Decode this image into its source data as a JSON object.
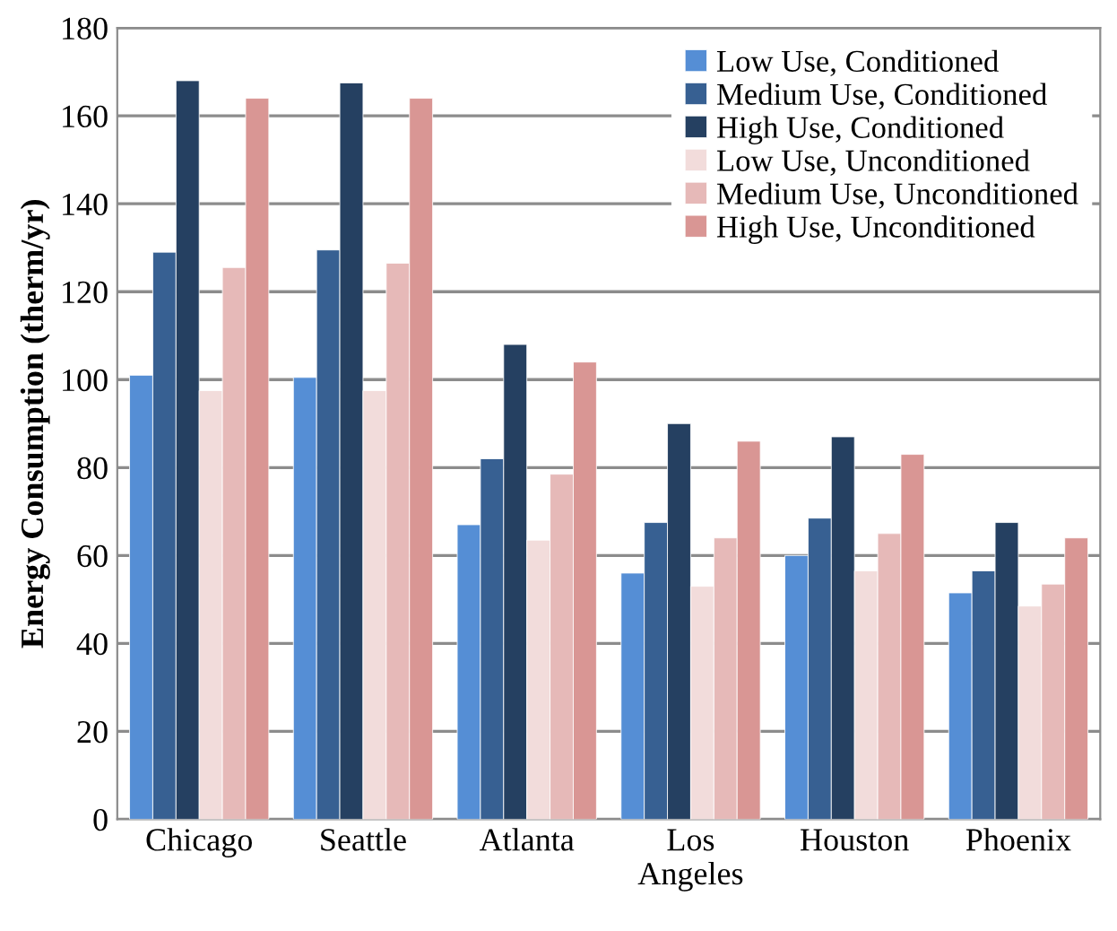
{
  "chart_data": {
    "type": "bar",
    "ylabel": "Energy Consumption (therm/yr)",
    "categories": [
      "Chicago",
      "Seattle",
      "Atlanta",
      "Los\nAngeles",
      "Houston",
      "Phoenix"
    ],
    "series": [
      {
        "name": "Low Use, Conditioned",
        "color": "#558ed5",
        "values": [
          101,
          100.5,
          67,
          56,
          60,
          51.5
        ]
      },
      {
        "name": "Medium Use, Conditioned",
        "color": "#376092",
        "values": [
          129,
          129.5,
          82,
          67.5,
          68.5,
          56.5
        ]
      },
      {
        "name": "High Use, Conditioned",
        "color": "#254061",
        "values": [
          168,
          167.5,
          108,
          90,
          87,
          67.5
        ]
      },
      {
        "name": "Low Use, Unconditioned",
        "color": "#f2dcdb",
        "values": [
          97.5,
          97.5,
          63.5,
          53,
          56.5,
          48.5
        ]
      },
      {
        "name": "Medium Use, Unconditioned",
        "color": "#e6b9b8",
        "values": [
          125.5,
          126.5,
          78.5,
          64,
          65,
          53.5
        ]
      },
      {
        "name": "High Use, Unconditioned",
        "color": "#d99694",
        "values": [
          164,
          164,
          104,
          86,
          83,
          64
        ]
      }
    ],
    "ylim": [
      0,
      180
    ],
    "yticks": [
      0,
      20,
      40,
      60,
      80,
      100,
      120,
      140,
      160,
      180
    ],
    "grid": "y",
    "legend": "top right"
  }
}
